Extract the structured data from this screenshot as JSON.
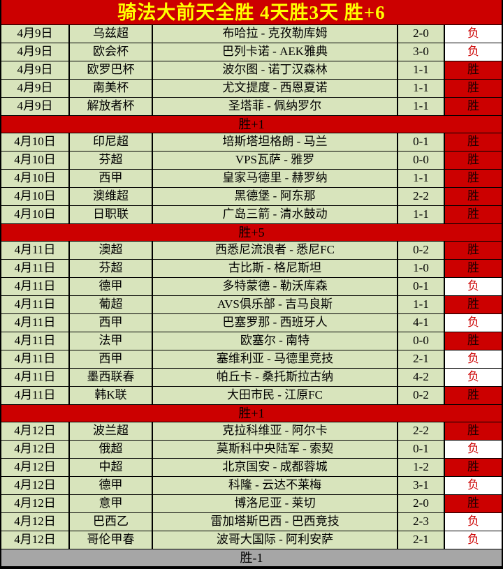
{
  "title": "骑法大前天全胜 4天胜3天 胜+6",
  "colors": {
    "header_bg": "#cc0000",
    "header_text": "#ffff00",
    "row_bg": "#d8e4bc",
    "separator_red": "#cc0000",
    "separator_gray": "#a6a6a6",
    "win_cell_bg": "#cc0000",
    "win_text": "#220000",
    "loss_cell_bg": "#ffffff",
    "loss_text": "#cc0000",
    "grid_line": "#000000"
  },
  "result_labels": {
    "win": "胜",
    "loss": "负"
  },
  "rows": [
    {
      "type": "match",
      "date": "4月9日",
      "league": "乌兹超",
      "match": "布哈拉 - 克孜勒库姆",
      "score": "2-0",
      "result": "负",
      "outcome": "loss"
    },
    {
      "type": "match",
      "date": "4月9日",
      "league": "欧会杯",
      "match": "巴列卡诺 - AEK雅典",
      "score": "3-0",
      "result": "负",
      "outcome": "loss"
    },
    {
      "type": "match",
      "date": "4月9日",
      "league": "欧罗巴杯",
      "match": "波尔图 - 诺丁汉森林",
      "score": "1-1",
      "result": "胜",
      "outcome": "win"
    },
    {
      "type": "match",
      "date": "4月9日",
      "league": "南美杯",
      "match": "尤文提度 - 西恩夏诺",
      "score": "1-1",
      "result": "胜",
      "outcome": "win"
    },
    {
      "type": "match",
      "date": "4月9日",
      "league": "解放者杯",
      "match": "圣塔菲 - 佩纳罗尔",
      "score": "1-1",
      "result": "胜",
      "outcome": "win"
    },
    {
      "type": "separator",
      "label": "胜+1",
      "variant": "red"
    },
    {
      "type": "match",
      "date": "4月10日",
      "league": "印尼超",
      "match": "培斯塔坦格朗 - 马兰",
      "score": "0-1",
      "result": "胜",
      "outcome": "win"
    },
    {
      "type": "match",
      "date": "4月10日",
      "league": "芬超",
      "match": "VPS瓦萨 - 雅罗",
      "score": "0-0",
      "result": "胜",
      "outcome": "win"
    },
    {
      "type": "match",
      "date": "4月10日",
      "league": "西甲",
      "match": "皇家马德里 - 赫罗纳",
      "score": "1-1",
      "result": "胜",
      "outcome": "win"
    },
    {
      "type": "match",
      "date": "4月10日",
      "league": "澳维超",
      "match": "黑德堡 - 阿东那",
      "score": "2-2",
      "result": "胜",
      "outcome": "win"
    },
    {
      "type": "match",
      "date": "4月10日",
      "league": "日职联",
      "match": "广岛三箭 - 清水鼓动",
      "score": "1-1",
      "result": "胜",
      "outcome": "win"
    },
    {
      "type": "separator",
      "label": "胜+5",
      "variant": "red"
    },
    {
      "type": "match",
      "date": "4月11日",
      "league": "澳超",
      "match": "西悉尼流浪者 - 悉尼FC",
      "score": "0-2",
      "result": "胜",
      "outcome": "win"
    },
    {
      "type": "match",
      "date": "4月11日",
      "league": "芬超",
      "match": "古比斯 - 格尼斯坦",
      "score": "1-0",
      "result": "胜",
      "outcome": "win"
    },
    {
      "type": "match",
      "date": "4月11日",
      "league": "德甲",
      "match": "多特蒙德 - 勒沃库森",
      "score": "0-1",
      "result": "负",
      "outcome": "loss"
    },
    {
      "type": "match",
      "date": "4月11日",
      "league": "葡超",
      "match": "AVS俱乐部 - 吉马良斯",
      "score": "1-1",
      "result": "胜",
      "outcome": "win"
    },
    {
      "type": "match",
      "date": "4月11日",
      "league": "西甲",
      "match": "巴塞罗那 - 西班牙人",
      "score": "4-1",
      "result": "负",
      "outcome": "loss"
    },
    {
      "type": "match",
      "date": "4月11日",
      "league": "法甲",
      "match": "欧塞尔 - 南特",
      "score": "0-0",
      "result": "胜",
      "outcome": "win"
    },
    {
      "type": "match",
      "date": "4月11日",
      "league": "西甲",
      "match": "塞维利亚 - 马德里竞技",
      "score": "2-1",
      "result": "负",
      "outcome": "loss"
    },
    {
      "type": "match",
      "date": "4月11日",
      "league": "墨西联春",
      "match": "帕丘卡 - 桑托斯拉古纳",
      "score": "4-2",
      "result": "负",
      "outcome": "loss"
    },
    {
      "type": "match",
      "date": "4月11日",
      "league": "韩K联",
      "match": "大田市民 - 江原FC",
      "score": "0-2",
      "result": "胜",
      "outcome": "win"
    },
    {
      "type": "separator",
      "label": "胜+1",
      "variant": "red"
    },
    {
      "type": "match",
      "date": "4月12日",
      "league": "波兰超",
      "match": "克拉科维亚 - 阿尔卡",
      "score": "2-2",
      "result": "胜",
      "outcome": "win"
    },
    {
      "type": "match",
      "date": "4月12日",
      "league": "俄超",
      "match": "莫斯科中央陆军 - 索契",
      "score": "0-1",
      "result": "负",
      "outcome": "loss"
    },
    {
      "type": "match",
      "date": "4月12日",
      "league": "中超",
      "match": "北京国安 - 成都蓉城",
      "score": "1-2",
      "result": "胜",
      "outcome": "win"
    },
    {
      "type": "match",
      "date": "4月12日",
      "league": "德甲",
      "match": "科隆 - 云达不莱梅",
      "score": "3-1",
      "result": "负",
      "outcome": "loss"
    },
    {
      "type": "match",
      "date": "4月12日",
      "league": "意甲",
      "match": "博洛尼亚 - 莱切",
      "score": "2-0",
      "result": "胜",
      "outcome": "win"
    },
    {
      "type": "match",
      "date": "4月12日",
      "league": "巴西乙",
      "match": "雷加塔斯巴西 - 巴西竞技",
      "score": "2-3",
      "result": "负",
      "outcome": "loss"
    },
    {
      "type": "match",
      "date": "4月12日",
      "league": "哥伦甲春",
      "match": "波哥大国际 - 阿利安萨",
      "score": "2-1",
      "result": "负",
      "outcome": "loss"
    },
    {
      "type": "separator",
      "label": "胜-1",
      "variant": "gray"
    }
  ]
}
